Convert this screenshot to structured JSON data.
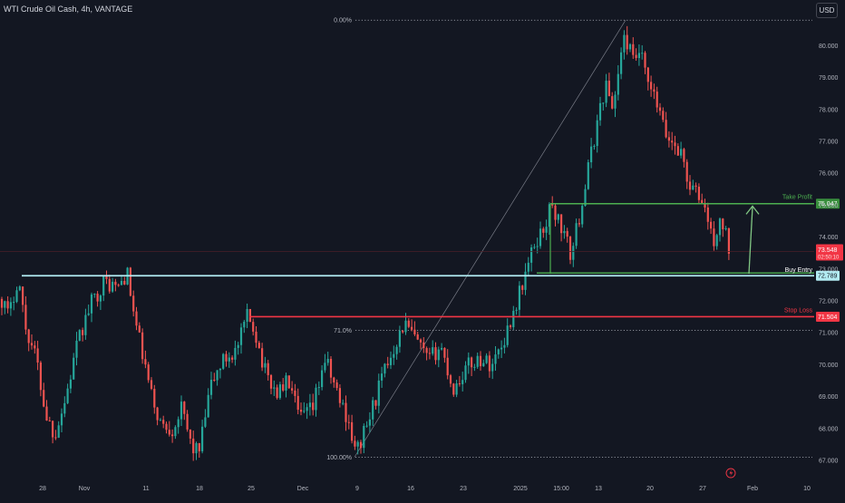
{
  "header": {
    "symbol": "WTI Crude Oil Cash, 4h, VANTAGE",
    "currency": "USD"
  },
  "colors": {
    "background": "#131722",
    "up": "#26a69a",
    "down": "#ef5350",
    "take_profit": "#4caf50",
    "buy_entry": "#b2ebf2",
    "stop_loss": "#f23645",
    "current_price": "#f23645",
    "grid_text": "#b2b5be"
  },
  "chart_data": {
    "type": "candlestick",
    "title": "WTI Crude Oil Cash, 4h, VANTAGE",
    "ylim": [
      66.8,
      81.0
    ],
    "y_ticks": [
      "67.000",
      "68.000",
      "69.000",
      "70.000",
      "71.000",
      "72.000",
      "73.000",
      "74.000",
      "75.000",
      "76.000",
      "77.000",
      "78.000",
      "79.000",
      "80.000"
    ],
    "x_ticks": [
      "28",
      "Nov",
      "11",
      "18",
      "25",
      "Dec",
      "9",
      "16",
      "23",
      "2025",
      "15:00",
      "13",
      "20",
      "27",
      "Feb",
      "10"
    ],
    "close_path": [
      {
        "i": 0,
        "c": 72.2
      },
      {
        "i": 10,
        "c": 71.5
      },
      {
        "i": 20,
        "c": 72.8
      },
      {
        "i": 28,
        "c": 71.2
      },
      {
        "i": 40,
        "c": 70.2
      },
      {
        "i": 50,
        "c": 68.5
      },
      {
        "i": 60,
        "c": 67.8
      },
      {
        "i": 72,
        "c": 68.9
      },
      {
        "i": 85,
        "c": 70.6
      },
      {
        "i": 100,
        "c": 71.9
      },
      {
        "i": 115,
        "c": 72.6
      },
      {
        "i": 130,
        "c": 72.4
      },
      {
        "i": 140,
        "c": 72.9
      },
      {
        "i": 148,
        "c": 71.5
      },
      {
        "i": 158,
        "c": 70.2
      },
      {
        "i": 168,
        "c": 68.9
      },
      {
        "i": 178,
        "c": 68.1
      },
      {
        "i": 190,
        "c": 68.0
      },
      {
        "i": 200,
        "c": 68.6
      },
      {
        "i": 212,
        "c": 67.4
      },
      {
        "i": 220,
        "c": 67.3
      },
      {
        "i": 232,
        "c": 69.3
      },
      {
        "i": 245,
        "c": 70.1
      },
      {
        "i": 262,
        "c": 70.5
      },
      {
        "i": 272,
        "c": 71.5
      },
      {
        "i": 280,
        "c": 71.2
      },
      {
        "i": 292,
        "c": 69.8
      },
      {
        "i": 305,
        "c": 69.1
      },
      {
        "i": 318,
        "c": 69.5
      },
      {
        "i": 330,
        "c": 68.3
      },
      {
        "i": 345,
        "c": 68.6
      },
      {
        "i": 358,
        "c": 70.2
      },
      {
        "i": 372,
        "c": 69.1
      },
      {
        "i": 385,
        "c": 68.2
      },
      {
        "i": 392,
        "c": 67.2
      },
      {
        "i": 405,
        "c": 68.1
      },
      {
        "i": 418,
        "c": 69.3
      },
      {
        "i": 432,
        "c": 70.4
      },
      {
        "i": 446,
        "c": 71.3
      },
      {
        "i": 460,
        "c": 70.7
      },
      {
        "i": 472,
        "c": 70.1
      },
      {
        "i": 486,
        "c": 70.6
      },
      {
        "i": 500,
        "c": 69.2
      },
      {
        "i": 514,
        "c": 69.9
      },
      {
        "i": 528,
        "c": 70.2
      },
      {
        "i": 542,
        "c": 70.0
      },
      {
        "i": 556,
        "c": 70.8
      },
      {
        "i": 568,
        "c": 71.8
      },
      {
        "i": 580,
        "c": 72.9
      },
      {
        "i": 590,
        "c": 73.8
      },
      {
        "i": 600,
        "c": 74.3
      },
      {
        "i": 608,
        "c": 75.0
      },
      {
        "i": 618,
        "c": 74.4
      },
      {
        "i": 630,
        "c": 73.4
      },
      {
        "i": 640,
        "c": 74.8
      },
      {
        "i": 650,
        "c": 76.3
      },
      {
        "i": 660,
        "c": 77.8
      },
      {
        "i": 668,
        "c": 78.8
      },
      {
        "i": 676,
        "c": 78.0
      },
      {
        "i": 684,
        "c": 79.6
      },
      {
        "i": 690,
        "c": 80.3
      },
      {
        "i": 698,
        "c": 79.5
      },
      {
        "i": 706,
        "c": 79.8
      },
      {
        "i": 714,
        "c": 78.8
      },
      {
        "i": 724,
        "c": 78.2
      },
      {
        "i": 734,
        "c": 77.2
      },
      {
        "i": 744,
        "c": 76.9
      },
      {
        "i": 752,
        "c": 76.6
      },
      {
        "i": 760,
        "c": 75.6
      },
      {
        "i": 770,
        "c": 75.3
      },
      {
        "i": 778,
        "c": 74.9
      },
      {
        "i": 786,
        "c": 73.8
      },
      {
        "i": 796,
        "c": 74.5
      },
      {
        "i": 806,
        "c": 73.5
      }
    ],
    "candles": {
      "first_x": 2,
      "last_x": 806,
      "spacing": 3.3,
      "seed": 17
    },
    "fibonacci": {
      "start": {
        "x_label": "9",
        "price": 67.1
      },
      "end": {
        "x_label": "20",
        "price": 80.8
      },
      "levels": [
        {
          "ratio_label": "0.00%"
        },
        {
          "ratio_label": "71.0%"
        },
        {
          "ratio_label": "100.00%"
        }
      ]
    },
    "levels": {
      "take_profit": {
        "label": "Take Profit",
        "price": 75.047,
        "price_label": "75.047"
      },
      "buy_entry": {
        "label": "Buy Entry",
        "price": 72.789,
        "price_label": "72.789"
      },
      "stop_loss": {
        "label": "Stop Loss",
        "price": 71.504,
        "price_label": "71.504"
      },
      "current": {
        "price": 73.548,
        "price_label": "73.548",
        "countdown": "02:50:10"
      }
    },
    "arrow": {
      "from_price": 72.85,
      "to_price": 75.0
    }
  }
}
